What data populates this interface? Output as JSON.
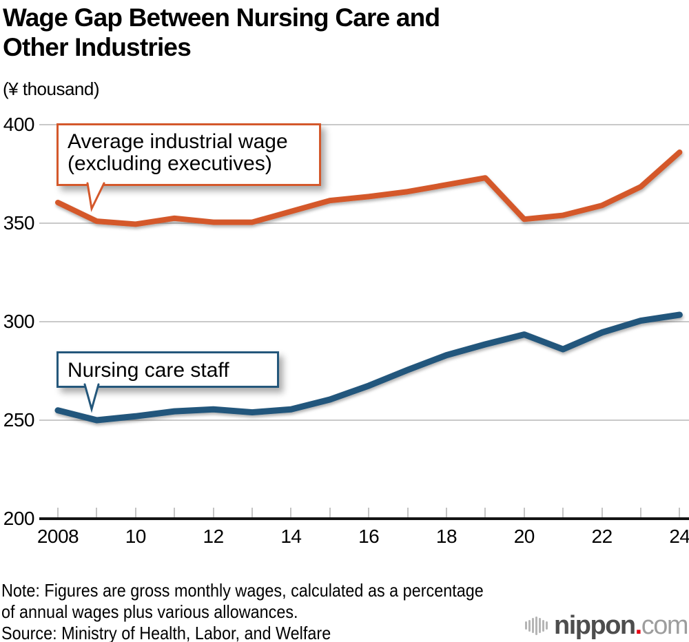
{
  "title": {
    "line1": "Wage Gap Between Nursing Care and",
    "line2": "Other Industries"
  },
  "unit_label": "(¥ thousand)",
  "callouts": {
    "industrial": {
      "line1": "Average industrial wage",
      "line2": "(excluding executives)"
    },
    "nursing": {
      "label": "Nursing care staff"
    }
  },
  "notes": {
    "line1": "Note: Figures are gross monthly wages, calculated as a percentage",
    "line2": "of annual wages plus various allowances.",
    "source": "Source: Ministry of Health, Labor, and Welfare"
  },
  "logo": {
    "icon": "soundwave-bars-icon",
    "bar_heights": [
      12,
      17,
      22,
      27,
      22,
      17,
      12
    ],
    "bar_color": "#b5b5b5",
    "name": "nippon",
    "dot": ".",
    "tld": "com",
    "name_color": "#4d4d4d",
    "dot_color": "#e60012",
    "tld_color": "#9d9d9d"
  },
  "chart_data": {
    "type": "line",
    "title": "Wage Gap Between Nursing Care and Other Industries",
    "ylabel": "¥ thousand",
    "ylim": [
      200,
      400
    ],
    "yticks": [
      200,
      250,
      300,
      350,
      400
    ],
    "grid": true,
    "grid_color": "#c9c9c9",
    "axis_color": "#141414",
    "legend_position": "inline-callouts",
    "x": [
      2008,
      2009,
      2010,
      2011,
      2012,
      2013,
      2014,
      2015,
      2016,
      2017,
      2018,
      2019,
      2020,
      2021,
      2022,
      2023,
      2024
    ],
    "x_tick_labels": [
      "2008",
      "",
      "10",
      "",
      "12",
      "",
      "14",
      "",
      "16",
      "",
      "18",
      "",
      "20",
      "",
      "22",
      "",
      "24"
    ],
    "series": [
      {
        "name": "Average industrial wage (excluding executives)",
        "color": "#d4582b",
        "stroke_width": 8,
        "values": [
          360.5,
          351,
          349.5,
          352.5,
          350.5,
          350.5,
          356,
          361.5,
          363.5,
          366,
          369.5,
          373,
          352,
          354,
          359,
          368.5,
          386
        ]
      },
      {
        "name": "Nursing care staff",
        "color": "#24577b",
        "stroke_width": 9,
        "values": [
          255,
          250,
          252,
          254.5,
          255.5,
          254,
          255.5,
          260.5,
          267.5,
          275.5,
          283,
          288.5,
          293.5,
          286,
          294.5,
          300.5,
          303.5
        ]
      }
    ]
  }
}
